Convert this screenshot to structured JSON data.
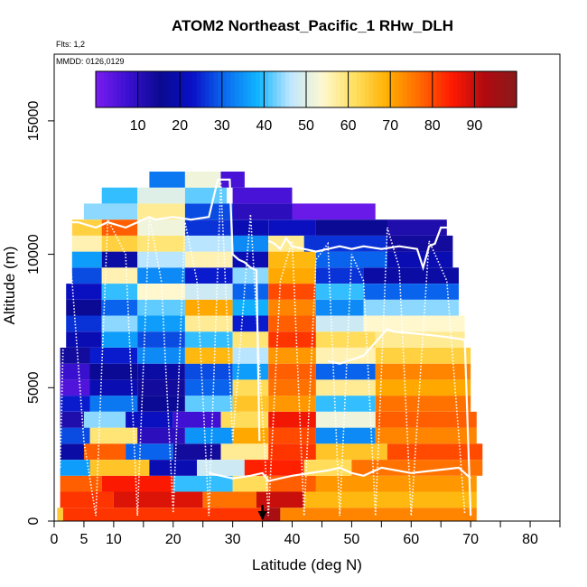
{
  "chart_data": {
    "type": "heatmap",
    "title": "ATOM2 Northeast_Pacific_1 RHw_DLH",
    "flights_label": "Flts: 1,2",
    "dates_label": "MMDD: 0126,0129",
    "xlabel": "Latitude (deg N)",
    "ylabel": "Altitude (m)",
    "xlim": [
      0,
      85
    ],
    "ylim": [
      0,
      17500
    ],
    "x_ticks": [
      0,
      5,
      10,
      20,
      30,
      40,
      50,
      60,
      70,
      80
    ],
    "x_minor_ticks": [
      15,
      25,
      35,
      45,
      55,
      65,
      75,
      85
    ],
    "y_ticks": [
      0,
      5000,
      10000,
      15000
    ],
    "colorbar": {
      "label_ticks": [
        10,
        20,
        30,
        40,
        50,
        60,
        70,
        80,
        90
      ],
      "range": [
        0,
        100
      ],
      "colors": [
        "#7a1cf0",
        "#3a10d0",
        "#0a0a90",
        "#0a10c8",
        "#0a6cf0",
        "#10b4ff",
        "#bde6ff",
        "#fff8d0",
        "#ffe060",
        "#ffb000",
        "#ff6a00",
        "#ff1a00",
        "#b00a10",
        "#8a1a1a"
      ]
    },
    "marker": {
      "latitude": 35,
      "altitude": 600
    },
    "grid": false,
    "legend": "none",
    "layers": [
      {
        "alt": 200,
        "segments": [
          [
            0.5,
            1.5,
            65
          ],
          [
            1.5,
            35,
            82
          ],
          [
            35,
            38,
            94
          ],
          [
            38,
            71,
            74
          ]
        ]
      },
      {
        "alt": 800,
        "segments": [
          [
            1,
            10,
            82
          ],
          [
            10,
            25,
            88
          ],
          [
            25,
            34,
            76
          ],
          [
            34,
            42,
            90
          ],
          [
            42,
            71,
            68
          ]
        ]
      },
      {
        "alt": 1400,
        "segments": [
          [
            1,
            8,
            78
          ],
          [
            8,
            20,
            85
          ],
          [
            20,
            30,
            40
          ],
          [
            30,
            36,
            62
          ],
          [
            36,
            44,
            78
          ],
          [
            44,
            71,
            72
          ]
        ]
      },
      {
        "alt": 2000,
        "segments": [
          [
            1,
            6,
            36
          ],
          [
            6,
            16,
            66
          ],
          [
            16,
            24,
            20
          ],
          [
            24,
            32,
            48
          ],
          [
            32,
            42,
            84
          ],
          [
            42,
            50,
            62
          ],
          [
            50,
            72,
            76
          ]
        ]
      },
      {
        "alt": 2600,
        "segments": [
          [
            1,
            5,
            18
          ],
          [
            5,
            12,
            78
          ],
          [
            12,
            20,
            30
          ],
          [
            20,
            28,
            14
          ],
          [
            28,
            36,
            58
          ],
          [
            36,
            44,
            82
          ],
          [
            44,
            56,
            66
          ],
          [
            56,
            72,
            80
          ]
        ]
      },
      {
        "alt": 3200,
        "segments": [
          [
            1,
            6,
            28
          ],
          [
            6,
            14,
            60
          ],
          [
            14,
            22,
            10
          ],
          [
            22,
            30,
            35
          ],
          [
            30,
            36,
            70
          ],
          [
            36,
            44,
            80
          ],
          [
            44,
            54,
            34
          ],
          [
            54,
            71,
            74
          ]
        ]
      },
      {
        "alt": 3800,
        "segments": [
          [
            1,
            5,
            12
          ],
          [
            5,
            12,
            44
          ],
          [
            12,
            20,
            22
          ],
          [
            20,
            28,
            7
          ],
          [
            28,
            36,
            62
          ],
          [
            36,
            44,
            86
          ],
          [
            44,
            54,
            52
          ],
          [
            54,
            71,
            78
          ]
        ]
      },
      {
        "alt": 4400,
        "segments": [
          [
            1,
            6,
            24
          ],
          [
            6,
            14,
            32
          ],
          [
            14,
            22,
            16
          ],
          [
            22,
            30,
            42
          ],
          [
            30,
            36,
            66
          ],
          [
            36,
            44,
            72
          ],
          [
            44,
            54,
            40
          ],
          [
            54,
            70,
            76
          ]
        ]
      },
      {
        "alt": 5000,
        "segments": [
          [
            1,
            6,
            5
          ],
          [
            6,
            14,
            20
          ],
          [
            14,
            22,
            14
          ],
          [
            22,
            30,
            30
          ],
          [
            30,
            36,
            62
          ],
          [
            36,
            44,
            76
          ],
          [
            44,
            54,
            58
          ],
          [
            54,
            70,
            70
          ]
        ]
      },
      {
        "alt": 5600,
        "segments": [
          [
            1,
            6,
            8
          ],
          [
            6,
            14,
            16
          ],
          [
            14,
            22,
            18
          ],
          [
            22,
            30,
            28
          ],
          [
            30,
            36,
            36
          ],
          [
            36,
            44,
            78
          ],
          [
            44,
            54,
            30
          ],
          [
            54,
            70,
            74
          ]
        ]
      },
      {
        "alt": 6200,
        "segments": [
          [
            1,
            6,
            14
          ],
          [
            6,
            14,
            24
          ],
          [
            14,
            22,
            34
          ],
          [
            22,
            30,
            68
          ],
          [
            30,
            36,
            46
          ],
          [
            36,
            44,
            72
          ],
          [
            44,
            54,
            56
          ],
          [
            54,
            70,
            64
          ]
        ]
      },
      {
        "alt": 6800,
        "segments": [
          [
            2,
            8,
            20
          ],
          [
            8,
            14,
            36
          ],
          [
            14,
            22,
            28
          ],
          [
            22,
            30,
            40
          ],
          [
            30,
            36,
            60
          ],
          [
            36,
            44,
            82
          ],
          [
            44,
            54,
            62
          ],
          [
            54,
            69,
            58
          ]
        ]
      },
      {
        "alt": 7400,
        "segments": [
          [
            2,
            8,
            26
          ],
          [
            8,
            14,
            44
          ],
          [
            14,
            22,
            36
          ],
          [
            22,
            30,
            58
          ],
          [
            30,
            36,
            24
          ],
          [
            36,
            44,
            78
          ],
          [
            44,
            52,
            48
          ],
          [
            52,
            69,
            54
          ]
        ]
      },
      {
        "alt": 8000,
        "segments": [
          [
            2,
            8,
            16
          ],
          [
            8,
            14,
            30
          ],
          [
            14,
            22,
            42
          ],
          [
            22,
            30,
            70
          ],
          [
            30,
            36,
            38
          ],
          [
            36,
            44,
            74
          ],
          [
            44,
            52,
            34
          ],
          [
            52,
            68,
            44
          ]
        ]
      },
      {
        "alt": 8600,
        "segments": [
          [
            2,
            8,
            22
          ],
          [
            8,
            14,
            40
          ],
          [
            14,
            22,
            54
          ],
          [
            22,
            30,
            48
          ],
          [
            30,
            36,
            30
          ],
          [
            36,
            44,
            80
          ],
          [
            44,
            52,
            40
          ],
          [
            52,
            68,
            30
          ]
        ]
      },
      {
        "alt": 9200,
        "segments": [
          [
            3,
            8,
            28
          ],
          [
            8,
            14,
            56
          ],
          [
            14,
            22,
            34
          ],
          [
            22,
            30,
            24
          ],
          [
            30,
            36,
            44
          ],
          [
            36,
            44,
            70
          ],
          [
            44,
            52,
            26
          ],
          [
            52,
            68,
            18
          ]
        ]
      },
      {
        "alt": 9800,
        "segments": [
          [
            3,
            8,
            36
          ],
          [
            8,
            14,
            18
          ],
          [
            14,
            22,
            46
          ],
          [
            22,
            30,
            56
          ],
          [
            30,
            36,
            20
          ],
          [
            36,
            44,
            68
          ],
          [
            44,
            56,
            30
          ],
          [
            56,
            67,
            20
          ]
        ]
      },
      {
        "alt": 10400,
        "segments": [
          [
            3,
            8,
            56
          ],
          [
            8,
            14,
            64
          ],
          [
            14,
            22,
            60
          ],
          [
            22,
            30,
            46
          ],
          [
            30,
            36,
            34
          ],
          [
            36,
            42,
            58
          ],
          [
            42,
            56,
            26
          ],
          [
            56,
            67,
            14
          ]
        ]
      },
      {
        "alt": 11000,
        "segments": [
          [
            3,
            8,
            64
          ],
          [
            8,
            14,
            78
          ],
          [
            14,
            22,
            52
          ],
          [
            22,
            30,
            26
          ],
          [
            30,
            36,
            20
          ],
          [
            36,
            44,
            22
          ],
          [
            44,
            56,
            16
          ],
          [
            56,
            66,
            12
          ]
        ]
      },
      {
        "alt": 11600,
        "segments": [
          [
            5,
            14,
            44
          ],
          [
            14,
            22,
            58
          ],
          [
            22,
            30,
            28
          ],
          [
            30,
            40,
            10
          ],
          [
            40,
            54,
            2
          ]
        ]
      },
      {
        "alt": 12200,
        "segments": [
          [
            8,
            14,
            40
          ],
          [
            14,
            22,
            50
          ],
          [
            22,
            29,
            42
          ],
          [
            30,
            40,
            6
          ]
        ]
      },
      {
        "alt": 12800,
        "segments": [
          [
            16,
            22,
            32
          ],
          [
            22,
            28,
            52
          ],
          [
            28,
            32,
            6
          ]
        ]
      }
    ],
    "flight_tracks": [
      {
        "style": "solid",
        "lat": [
          3,
          4,
          7,
          9,
          12,
          14,
          16,
          17,
          20,
          23,
          26,
          27.5,
          28.5,
          29.5,
          30,
          31,
          32,
          33,
          34,
          34.5
        ],
        "alt": [
          11200,
          11200,
          11000,
          11200,
          11000,
          11200,
          11400,
          11300,
          11400,
          11300,
          11400,
          12800,
          12800,
          12800,
          10000,
          9800,
          9700,
          9500,
          9400,
          3000
        ]
      },
      {
        "style": "solid",
        "lat": [
          36,
          37,
          38,
          39,
          40,
          42,
          44,
          46,
          48,
          50,
          52,
          55,
          58,
          61,
          62,
          63,
          64,
          65,
          66,
          69
        ],
        "alt": [
          10500,
          10400,
          10200,
          10600,
          10300,
          10200,
          10100,
          10200,
          10300,
          10200,
          10300,
          10200,
          10300,
          10200,
          9500,
          10300,
          10400,
          11000,
          11000,
          11100
        ]
      },
      {
        "style": "solid",
        "lat": [
          46,
          48,
          52,
          56,
          57,
          62,
          66,
          69,
          70
        ],
        "alt": [
          6000,
          5900,
          6200,
          7200,
          7100,
          7000,
          6900,
          6800,
          200
        ]
      },
      {
        "style": "solid",
        "lat": [
          26,
          28,
          30,
          33,
          35,
          36,
          38,
          40,
          43,
          46,
          48,
          50,
          52,
          55,
          60,
          64,
          68,
          70
        ],
        "alt": [
          1800,
          1700,
          1600,
          1700,
          1800,
          1500,
          1600,
          1700,
          1800,
          1900,
          2000,
          1800,
          1700,
          2000,
          1800,
          1900,
          2000,
          1600
        ]
      },
      {
        "style": "dotted",
        "lat": [
          1,
          2,
          3,
          5,
          7,
          9,
          12,
          14,
          16,
          18,
          20,
          22,
          24,
          26,
          28,
          30,
          33,
          36,
          38,
          40,
          42,
          44,
          46,
          48,
          50,
          52,
          54,
          56,
          58,
          60,
          63,
          66,
          69
        ],
        "alt": [
          2000,
          11200,
          9000,
          3000,
          200,
          11300,
          10000,
          200,
          11400,
          9000,
          300,
          11200,
          9000,
          200,
          12700,
          3000,
          11500,
          200,
          9000,
          10500,
          200,
          9800,
          10400,
          200,
          10000,
          9000,
          200,
          11000,
          9500,
          200,
          10500,
          9000,
          300
        ]
      }
    ]
  }
}
